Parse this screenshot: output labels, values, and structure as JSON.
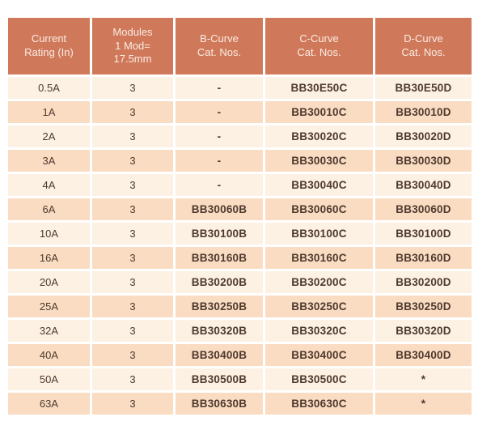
{
  "colors": {
    "header_bg": "#d0795a",
    "header_text": "#f9ece4",
    "row_light_bg": "#fcf1e2",
    "row_dark_bg": "#fadcc2",
    "body_text": "#4e3a2e",
    "page_bg": "#ffffff"
  },
  "table": {
    "columns": [
      "Current\nRating (In)",
      "Modules\n1 Mod=\n17.5mm",
      "B-Curve\nCat. Nos.",
      "C-Curve\nCat. Nos.",
      "D-Curve\nCat. Nos."
    ],
    "rows": [
      [
        "0.5A",
        "3",
        "-",
        "BB30E50C",
        "BB30E50D"
      ],
      [
        "1A",
        "3",
        "-",
        "BB30010C",
        "BB30010D"
      ],
      [
        "2A",
        "3",
        "-",
        "BB30020C",
        "BB30020D"
      ],
      [
        "3A",
        "3",
        "-",
        "BB30030C",
        "BB30030D"
      ],
      [
        "4A",
        "3",
        "-",
        "BB30040C",
        "BB30040D"
      ],
      [
        "6A",
        "3",
        "BB30060B",
        "BB30060C",
        "BB30060D"
      ],
      [
        "10A",
        "3",
        "BB30100B",
        "BB30100C",
        "BB30100D"
      ],
      [
        "16A",
        "3",
        "BB30160B",
        "BB30160C",
        "BB30160D"
      ],
      [
        "20A",
        "3",
        "BB30200B",
        "BB30200C",
        "BB30200D"
      ],
      [
        "25A",
        "3",
        "BB30250B",
        "BB30250C",
        "BB30250D"
      ],
      [
        "32A",
        "3",
        "BB30320B",
        "BB30320C",
        "BB30320D"
      ],
      [
        "40A",
        "3",
        "BB30400B",
        "BB30400C",
        "BB30400D"
      ],
      [
        "50A",
        "3",
        "BB30500B",
        "BB30500C",
        "*"
      ],
      [
        "63A",
        "3",
        "BB30630B",
        "BB30630C",
        "*"
      ]
    ]
  }
}
